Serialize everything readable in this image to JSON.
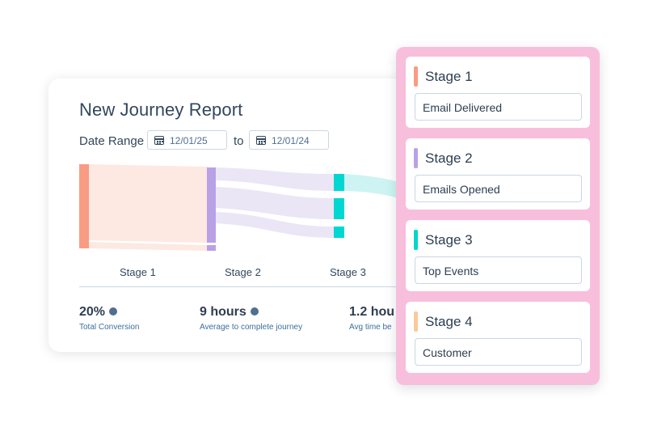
{
  "report": {
    "title": "New Journey Report",
    "date_range_label": "Date Range",
    "start_date": "12/01/25",
    "to_label": "to",
    "end_date": "12/01/24",
    "stage_labels": [
      "Stage 1",
      "Stage 2",
      "Stage 3"
    ],
    "metrics": [
      {
        "value": "20%",
        "label": "Total Conversion"
      },
      {
        "value": "9 hours",
        "label": "Average to complete journey"
      },
      {
        "value": "1.2 hou",
        "label": "Avg time be"
      }
    ],
    "colors": {
      "stage1": "#f99c83",
      "stage2": "#b9a1e6",
      "stage3": "#00d7d1",
      "flow1": "#fde8e2",
      "flow2": "#ebe6f5",
      "flow3": "#cdf4f2"
    }
  },
  "stages_panel": {
    "cards": [
      {
        "name": "Stage 1",
        "value": "Email Delivered",
        "color": "#f99c83"
      },
      {
        "name": "Stage 2",
        "value": "Emails Opened",
        "color": "#b9a1e6"
      },
      {
        "name": "Stage 3",
        "value": "Top Events",
        "color": "#00d7d1"
      },
      {
        "name": "Stage 4",
        "value": "Customer",
        "color": "#fbc99a"
      }
    ],
    "background": "#f8bfdc"
  }
}
